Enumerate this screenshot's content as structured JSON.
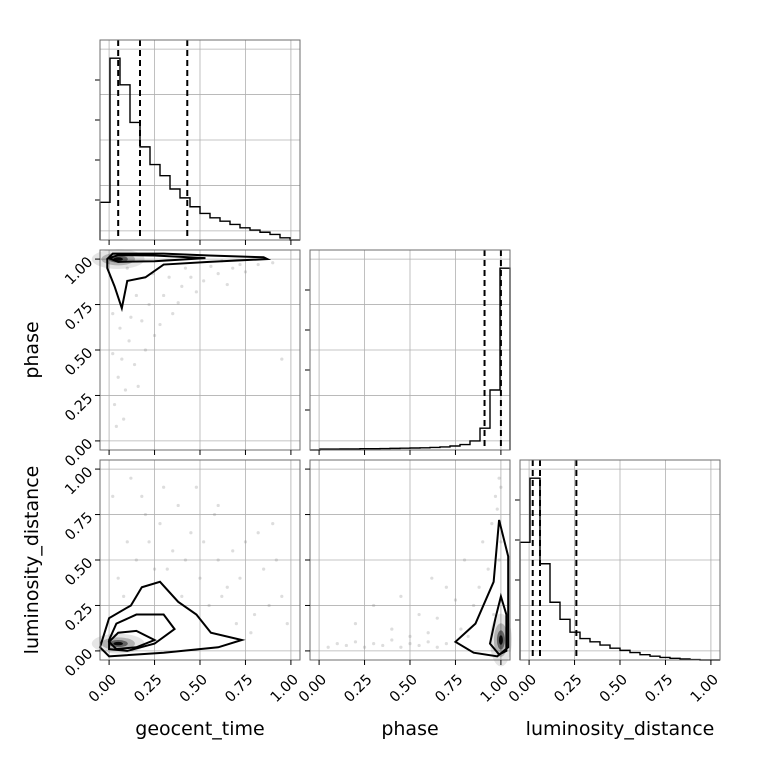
{
  "chart_data": {
    "type": "scatter",
    "parameters": [
      "geocent_time",
      "phase",
      "luminosity_distance"
    ],
    "tick_labels": [
      "0.00",
      "0.25",
      "0.50",
      "0.75",
      "1.00"
    ],
    "range": [
      -0.05,
      1.05
    ],
    "grid": true,
    "diagonal_histograms": [
      {
        "parameter": "geocent_time",
        "bin_edges": [
          -0.05,
          0.005,
          0.06,
          0.115,
          0.17,
          0.225,
          0.28,
          0.335,
          0.39,
          0.445,
          0.5,
          0.555,
          0.61,
          0.665,
          0.72,
          0.775,
          0.83,
          0.885,
          0.94,
          0.995,
          1.05
        ],
        "counts": [
          0.17,
          0.82,
          0.7,
          0.53,
          0.42,
          0.34,
          0.29,
          0.23,
          0.19,
          0.15,
          0.12,
          0.1,
          0.085,
          0.07,
          0.055,
          0.045,
          0.035,
          0.025,
          0.01,
          0.0
        ],
        "quantiles": [
          0.05,
          0.17,
          0.43
        ]
      },
      {
        "parameter": "phase",
        "bin_edges": [
          -0.05,
          0.005,
          0.06,
          0.115,
          0.17,
          0.225,
          0.28,
          0.335,
          0.39,
          0.445,
          0.5,
          0.555,
          0.61,
          0.665,
          0.72,
          0.775,
          0.83,
          0.885,
          0.94,
          0.995,
          1.05
        ],
        "counts": [
          0.0,
          0.005,
          0.005,
          0.006,
          0.006,
          0.007,
          0.007,
          0.008,
          0.009,
          0.01,
          0.011,
          0.012,
          0.014,
          0.017,
          0.022,
          0.03,
          0.05,
          0.12,
          0.33,
          1.0
        ],
        "quantiles": [
          0.91,
          1.0
        ]
      },
      {
        "parameter": "luminosity_distance",
        "bin_edges": [
          -0.05,
          0.005,
          0.06,
          0.115,
          0.17,
          0.225,
          0.28,
          0.335,
          0.39,
          0.445,
          0.5,
          0.555,
          0.61,
          0.665,
          0.72,
          0.775,
          0.83,
          0.885,
          0.94,
          0.995,
          1.05
        ],
        "counts": [
          0.55,
          0.85,
          0.45,
          0.27,
          0.19,
          0.13,
          0.1,
          0.085,
          0.07,
          0.055,
          0.045,
          0.035,
          0.025,
          0.018,
          0.012,
          0.008,
          0.005,
          0.002,
          0.0,
          0.0
        ],
        "quantiles": [
          0.02,
          0.06,
          0.26
        ]
      }
    ],
    "pairs": [
      {
        "x": "geocent_time",
        "y": "phase",
        "density_peak": [
          0.05,
          1.0
        ],
        "contours": [
          [
            [
              -0.01,
              1.0
            ],
            [
              0.02,
              1.03
            ],
            [
              0.3,
              1.03
            ],
            [
              0.55,
              1.02
            ],
            [
              0.85,
              1.01
            ],
            [
              0.87,
              1.0
            ],
            [
              0.55,
              0.985
            ],
            [
              0.3,
              0.97
            ],
            [
              0.2,
              0.9
            ],
            [
              0.1,
              0.88
            ],
            [
              0.07,
              0.73
            ],
            [
              0.03,
              0.85
            ],
            [
              -0.01,
              0.95
            ]
          ],
          [
            [
              0.0,
              1.005
            ],
            [
              0.05,
              1.022
            ],
            [
              0.25,
              1.02
            ],
            [
              0.53,
              1.005
            ],
            [
              0.25,
              0.988
            ],
            [
              0.05,
              0.985
            ]
          ]
        ],
        "scatter_sample": [
          [
            0.03,
            0.2
          ],
          [
            0.05,
            0.35
          ],
          [
            0.02,
            0.48
          ],
          [
            0.08,
            0.12
          ],
          [
            0.06,
            0.62
          ],
          [
            0.11,
            0.55
          ],
          [
            0.14,
            0.42
          ],
          [
            0.09,
            0.28
          ],
          [
            0.18,
            0.66
          ],
          [
            0.22,
            0.75
          ],
          [
            0.25,
            0.58
          ],
          [
            0.3,
            0.8
          ],
          [
            0.35,
            0.7
          ],
          [
            0.4,
            0.85
          ],
          [
            0.45,
            0.9
          ],
          [
            0.52,
            0.88
          ],
          [
            0.6,
            0.92
          ],
          [
            0.68,
            0.95
          ],
          [
            0.75,
            0.93
          ],
          [
            0.82,
            0.97
          ],
          [
            0.04,
            0.08
          ],
          [
            0.07,
            0.45
          ],
          [
            0.12,
            0.68
          ],
          [
            0.16,
            0.3
          ],
          [
            0.2,
            0.5
          ],
          [
            0.28,
            0.64
          ],
          [
            0.33,
            0.9
          ],
          [
            0.38,
            0.76
          ],
          [
            0.48,
            0.82
          ],
          [
            0.56,
            0.96
          ],
          [
            0.65,
            0.86
          ],
          [
            0.72,
            0.97
          ],
          [
            0.9,
            0.98
          ],
          [
            0.95,
            0.45
          ],
          [
            0.02,
            0.7
          ],
          [
            0.1,
            0.95
          ],
          [
            0.15,
            0.8
          ],
          [
            0.24,
            0.92
          ],
          [
            0.42,
            0.95
          ],
          [
            0.62,
            0.99
          ]
        ]
      },
      {
        "x": "geocent_time",
        "y": "luminosity_distance",
        "density_peak": [
          0.05,
          0.04
        ],
        "contours": [
          [
            [
              -0.05,
              0.02
            ],
            [
              0.0,
              0.18
            ],
            [
              0.12,
              0.25
            ],
            [
              0.18,
              0.35
            ],
            [
              0.28,
              0.38
            ],
            [
              0.38,
              0.27
            ],
            [
              0.48,
              0.2
            ],
            [
              0.56,
              0.1
            ],
            [
              0.73,
              0.06
            ],
            [
              0.6,
              0.02
            ],
            [
              0.3,
              -0.01
            ],
            [
              0.0,
              -0.03
            ]
          ],
          [
            [
              0.0,
              0.06
            ],
            [
              0.04,
              0.15
            ],
            [
              0.15,
              0.2
            ],
            [
              0.3,
              0.2
            ],
            [
              0.36,
              0.12
            ],
            [
              0.25,
              0.04
            ],
            [
              0.1,
              0.0
            ],
            [
              0.0,
              0.01
            ]
          ],
          [
            [
              0.0,
              0.05
            ],
            [
              0.05,
              0.1
            ],
            [
              0.15,
              0.11
            ],
            [
              0.25,
              0.06
            ],
            [
              0.15,
              0.02
            ],
            [
              0.04,
              0.01
            ]
          ]
        ],
        "scatter_sample": [
          [
            0.05,
            0.4
          ],
          [
            0.1,
            0.6
          ],
          [
            0.15,
            0.5
          ],
          [
            0.2,
            0.75
          ],
          [
            0.25,
            0.45
          ],
          [
            0.3,
            0.9
          ],
          [
            0.35,
            0.55
          ],
          [
            0.4,
            0.3
          ],
          [
            0.45,
            0.65
          ],
          [
            0.5,
            0.4
          ],
          [
            0.55,
            0.25
          ],
          [
            0.6,
            0.5
          ],
          [
            0.65,
            0.35
          ],
          [
            0.7,
            0.15
          ],
          [
            0.75,
            0.6
          ],
          [
            0.8,
            0.2
          ],
          [
            0.85,
            0.45
          ],
          [
            0.9,
            0.7
          ],
          [
            0.95,
            0.3
          ],
          [
            0.02,
            0.85
          ],
          [
            0.08,
            0.3
          ],
          [
            0.12,
            0.95
          ],
          [
            0.18,
            0.85
          ],
          [
            0.22,
            0.6
          ],
          [
            0.28,
            0.7
          ],
          [
            0.32,
            0.45
          ],
          [
            0.38,
            0.8
          ],
          [
            0.42,
            0.5
          ],
          [
            0.48,
            0.9
          ],
          [
            0.52,
            0.6
          ],
          [
            0.58,
            0.75
          ],
          [
            0.62,
            0.3
          ],
          [
            0.68,
            0.55
          ],
          [
            0.72,
            0.4
          ],
          [
            0.78,
            0.1
          ],
          [
            0.82,
            0.65
          ],
          [
            0.88,
            0.25
          ],
          [
            0.92,
            0.5
          ],
          [
            0.98,
            0.15
          ],
          [
            0.6,
            0.8
          ]
        ]
      },
      {
        "x": "phase",
        "y": "luminosity_distance",
        "density_peak": [
          1.0,
          0.06
        ],
        "contours": [
          [
            [
              0.75,
              0.05
            ],
            [
              0.86,
              0.15
            ],
            [
              0.96,
              0.38
            ],
            [
              0.99,
              0.72
            ],
            [
              1.04,
              0.52
            ],
            [
              1.04,
              0.02
            ],
            [
              0.98,
              -0.03
            ],
            [
              0.85,
              -0.01
            ]
          ],
          [
            [
              0.94,
              0.04
            ],
            [
              0.97,
              0.18
            ],
            [
              1.0,
              0.3
            ],
            [
              1.03,
              0.2
            ],
            [
              1.03,
              0.0
            ],
            [
              0.99,
              -0.02
            ]
          ]
        ],
        "scatter_sample": [
          [
            0.05,
            0.02
          ],
          [
            0.1,
            0.04
          ],
          [
            0.15,
            0.03
          ],
          [
            0.2,
            0.05
          ],
          [
            0.25,
            0.02
          ],
          [
            0.3,
            0.04
          ],
          [
            0.35,
            0.03
          ],
          [
            0.4,
            0.06
          ],
          [
            0.45,
            0.02
          ],
          [
            0.5,
            0.04
          ],
          [
            0.55,
            0.03
          ],
          [
            0.6,
            0.05
          ],
          [
            0.65,
            0.02
          ],
          [
            0.7,
            0.04
          ],
          [
            0.3,
            0.25
          ],
          [
            0.45,
            0.3
          ],
          [
            0.55,
            0.2
          ],
          [
            0.62,
            0.4
          ],
          [
            0.7,
            0.35
          ],
          [
            0.8,
            0.5
          ],
          [
            0.85,
            0.25
          ],
          [
            0.9,
            0.6
          ],
          [
            0.95,
            0.7
          ],
          [
            0.97,
            0.85
          ],
          [
            0.99,
            0.95
          ],
          [
            1.0,
            0.9
          ],
          [
            0.98,
            0.78
          ],
          [
            0.93,
            0.45
          ],
          [
            0.88,
            0.35
          ],
          [
            0.78,
            0.12
          ],
          [
            0.2,
            0.15
          ],
          [
            0.4,
            0.12
          ],
          [
            0.5,
            0.08
          ],
          [
            0.65,
            0.18
          ],
          [
            0.75,
            0.28
          ],
          [
            0.82,
            0.08
          ],
          [
            0.6,
            0.1
          ],
          [
            1.0,
            0.6
          ],
          [
            0.99,
            0.5
          ],
          [
            0.96,
            0.2
          ]
        ]
      }
    ]
  }
}
